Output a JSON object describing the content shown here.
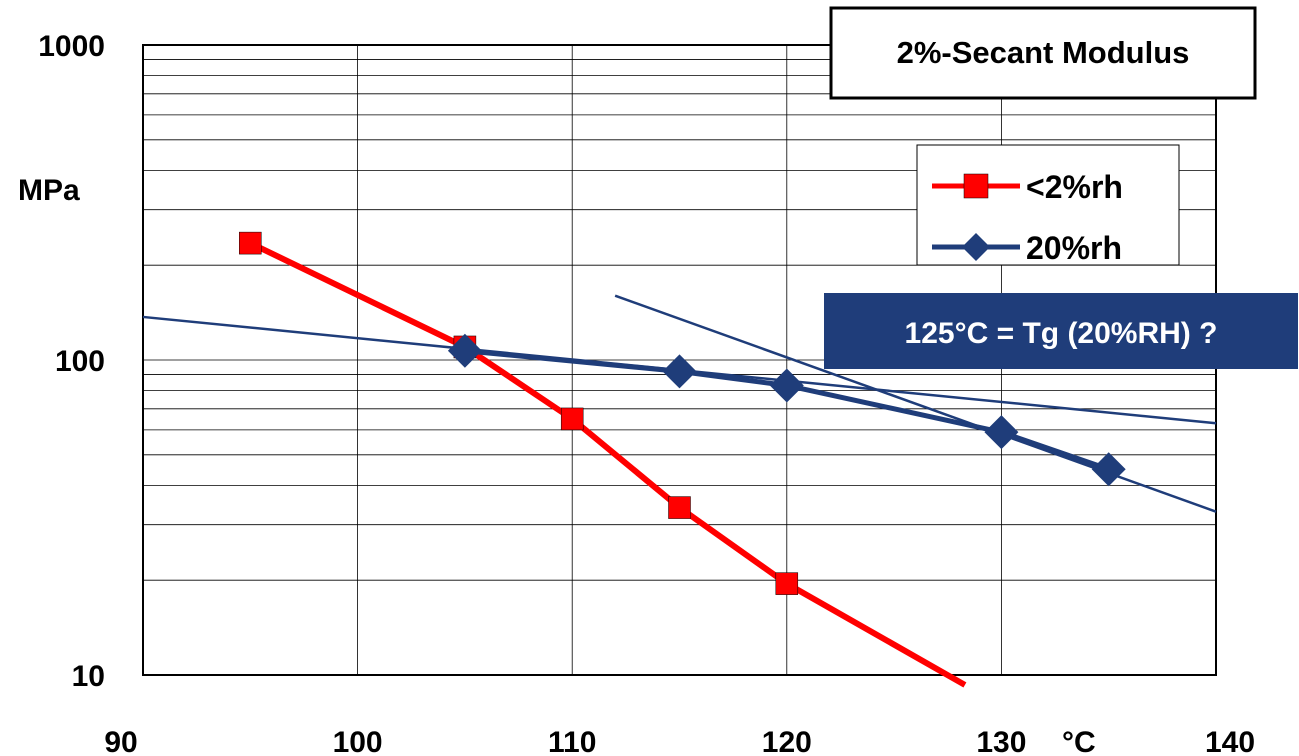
{
  "chart_data": {
    "type": "line",
    "title": "2%-Secant Modulus",
    "xlabel": "°C",
    "ylabel": "MPa",
    "xlim": [
      90,
      140
    ],
    "ylim": [
      10,
      1000
    ],
    "yscale": "log",
    "grid": true,
    "legend_position": "top-right",
    "x_ticks": [
      "90",
      "100",
      "110",
      "120",
      "130",
      "140"
    ],
    "y_ticks": [
      "10",
      "100",
      "1000"
    ],
    "series": [
      {
        "name": "<2%rh",
        "color": "#ff0000",
        "marker": "square",
        "points": [
          {
            "x": 95,
            "y": 235
          },
          {
            "x": 105,
            "y": 110
          },
          {
            "x": 110,
            "y": 65
          },
          {
            "x": 115,
            "y": 34
          },
          {
            "x": 120,
            "y": 19.5
          }
        ],
        "trend_to": {
          "x": 128.3,
          "y": 9.3
        }
      },
      {
        "name": "20%rh",
        "color": "#1f3d7a",
        "marker": "diamond",
        "points": [
          {
            "x": 105,
            "y": 107
          },
          {
            "x": 115,
            "y": 92
          },
          {
            "x": 120,
            "y": 83
          },
          {
            "x": 130,
            "y": 59
          },
          {
            "x": 135,
            "y": 45
          }
        ]
      }
    ],
    "trend_lines": [
      {
        "color": "#1f3d7a",
        "from": {
          "x": 90,
          "y": 137
        },
        "to": {
          "x": 140,
          "y": 63
        }
      },
      {
        "color": "#1f3d7a",
        "from": {
          "x": 112,
          "y": 160
        },
        "to": {
          "x": 140,
          "y": 33
        }
      }
    ],
    "annotation": {
      "text": "125°C = Tg (20%RH) ?",
      "background": "#1f3d7a"
    }
  }
}
